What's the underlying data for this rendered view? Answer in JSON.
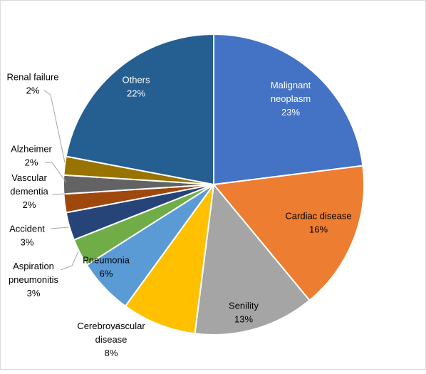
{
  "chart_data": {
    "type": "pie",
    "title": "",
    "start_angle_deg": 0,
    "direction": "clockwise",
    "legend": "none",
    "slices": [
      {
        "name": "Malignant neoplasm",
        "label_lines": [
          "Malignant",
          "neoplasm"
        ],
        "value": 23,
        "value_label": "23%",
        "color": "#4472C4",
        "label_pos": "inside",
        "label_color": "#ffffff"
      },
      {
        "name": "Cardiac disease",
        "label_lines": [
          "Cardiac disease"
        ],
        "value": 16,
        "value_label": "16%",
        "color": "#ED7D31",
        "label_pos": "inside",
        "label_color": "#000000"
      },
      {
        "name": "Senility",
        "label_lines": [
          "Senility"
        ],
        "value": 13,
        "value_label": "13%",
        "color": "#A5A5A5",
        "label_pos": "inside",
        "label_color": "#000000"
      },
      {
        "name": "Cerebrovascular disease",
        "label_lines": [
          "Cerebrovascular",
          "disease"
        ],
        "value": 8,
        "value_label": "8%",
        "color": "#FFC000",
        "label_pos": "outside",
        "label_color": "#000000"
      },
      {
        "name": "Pneumonia",
        "label_lines": [
          "Pneumonia"
        ],
        "value": 6,
        "value_label": "6%",
        "color": "#5B9BD5",
        "label_pos": "inside",
        "label_color": "#000000"
      },
      {
        "name": "Aspiration pneumonitis",
        "label_lines": [
          "Aspiration",
          "pneumonitis"
        ],
        "value": 3,
        "value_label": "3%",
        "color": "#70AD47",
        "label_pos": "outside",
        "label_color": "#000000"
      },
      {
        "name": "Accident",
        "label_lines": [
          "Accident"
        ],
        "value": 3,
        "value_label": "3%",
        "color": "#264478",
        "label_pos": "outside",
        "label_color": "#000000"
      },
      {
        "name": "Vascular dementia",
        "label_lines": [
          "Vascular",
          "dementia"
        ],
        "value": 2,
        "value_label": "2%",
        "color": "#9E480E",
        "label_pos": "outside",
        "label_color": "#000000"
      },
      {
        "name": "Alzheimer",
        "label_lines": [
          "Alzheimer"
        ],
        "value": 2,
        "value_label": "2%",
        "color": "#636363",
        "label_pos": "outside",
        "label_color": "#000000"
      },
      {
        "name": "Renal failure",
        "label_lines": [
          "Renal failure"
        ],
        "value": 2,
        "value_label": "2%",
        "color": "#997300",
        "label_pos": "outside",
        "label_color": "#000000"
      },
      {
        "name": "Others",
        "label_lines": [
          "Others"
        ],
        "value": 22,
        "value_label": "22%",
        "color": "#255E91",
        "label_pos": "inside",
        "label_color": "#ffffff"
      }
    ]
  }
}
